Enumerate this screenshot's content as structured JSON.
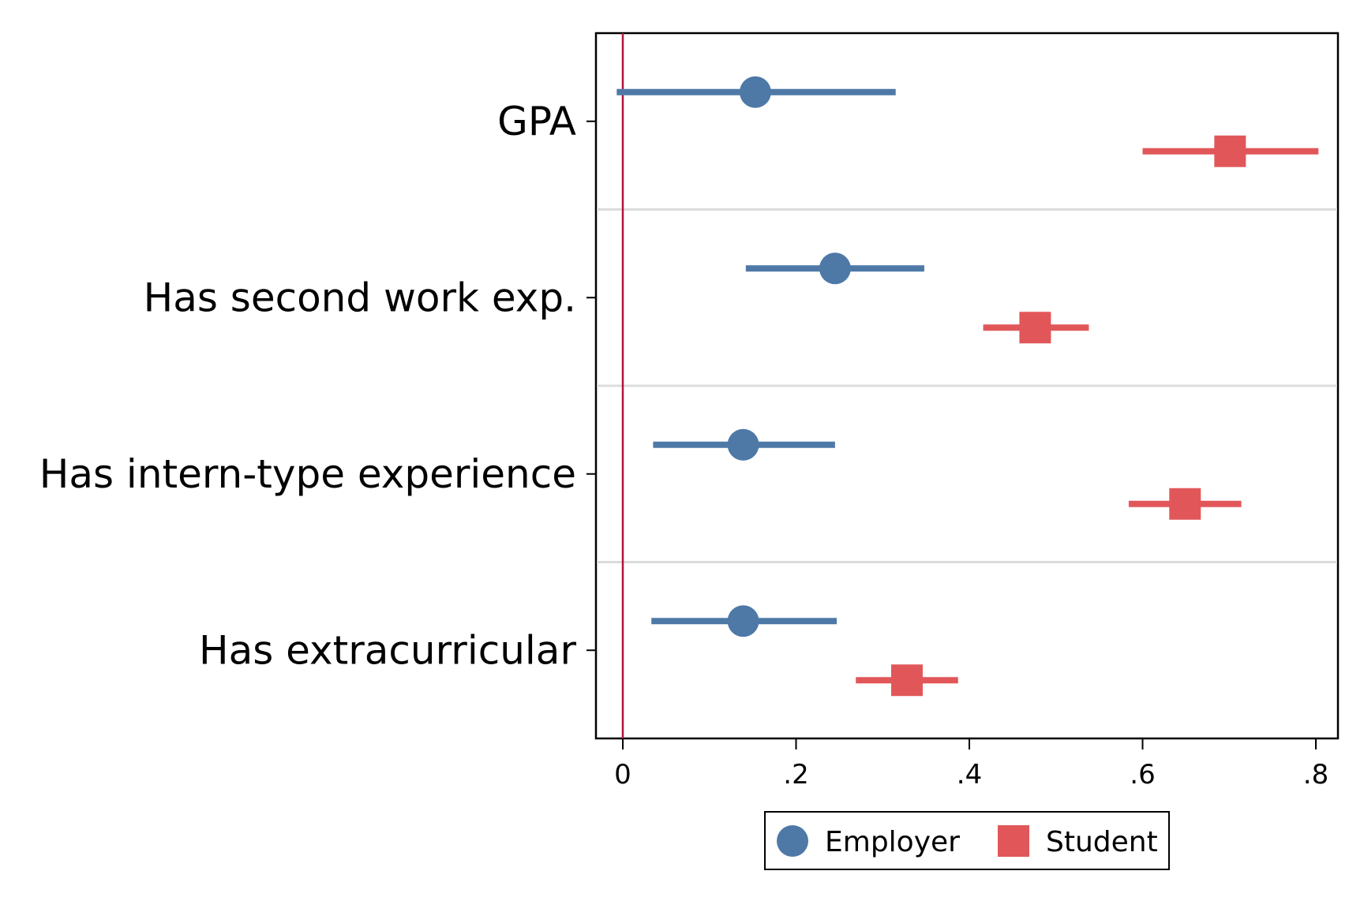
{
  "chart_data": {
    "type": "scatter",
    "subtype": "coefficient-plot-horizontal",
    "title": "",
    "xlabel": "",
    "ylabel": "",
    "xlim": [
      -0.03,
      0.81
    ],
    "xticks": [
      0,
      0.2,
      0.4,
      0.6,
      0.8
    ],
    "xtick_labels": [
      "0",
      ".2",
      ".4",
      ".6",
      ".8"
    ],
    "reference_line": {
      "x": 0,
      "color": "#B5123E"
    },
    "categories": [
      "GPA",
      "Has second work exp.",
      "Has intern-type experience",
      "Has extracurricular"
    ],
    "series": [
      {
        "name": "Employer",
        "marker": "circle",
        "color": "#4E79A7",
        "values": [
          0.153,
          0.245,
          0.139,
          0.139
        ],
        "ci_low": [
          -0.007,
          0.142,
          0.035,
          0.033
        ],
        "ci_high": [
          0.315,
          0.348,
          0.245,
          0.247
        ]
      },
      {
        "name": "Student",
        "marker": "square",
        "color": "#E15759",
        "values": [
          0.701,
          0.476,
          0.649,
          0.328
        ],
        "ci_low": [
          0.6,
          0.416,
          0.584,
          0.269
        ],
        "ci_high": [
          0.803,
          0.538,
          0.714,
          0.387
        ]
      }
    ],
    "legend": {
      "position": "bottom",
      "entries": [
        "Employer",
        "Student"
      ]
    },
    "grid": false
  }
}
